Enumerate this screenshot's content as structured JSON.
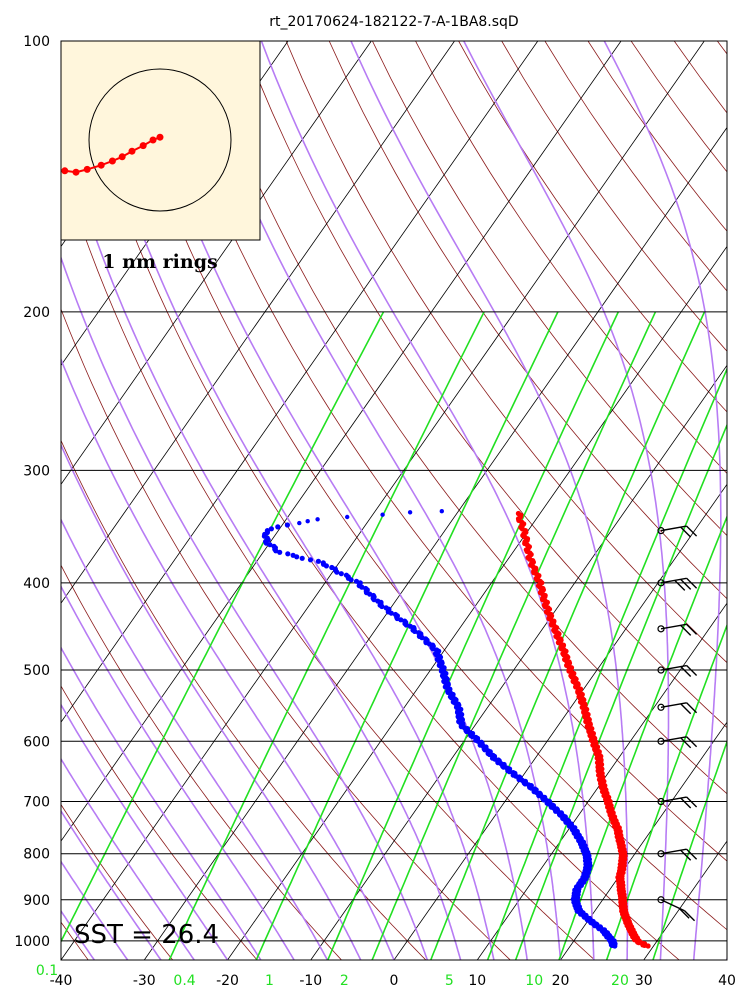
{
  "chart_data": {
    "type": "skew-t",
    "title": "rt_20170624-182122-7-A-1BA8.sqD",
    "pressure_ticks": [
      100,
      200,
      300,
      400,
      500,
      600,
      700,
      800,
      900,
      1000
    ],
    "pressure_range": [
      1050,
      100
    ],
    "temperature_ticks": [
      -40,
      -30,
      -20,
      -10,
      0,
      10,
      20,
      30,
      40
    ],
    "mixing_ratio_ticks": [
      {
        "value": "0.1",
        "p": 1050,
        "t": -40
      },
      {
        "value": "0.4",
        "p": 1050,
        "t": -26.6
      },
      {
        "value": "1",
        "p": 1050,
        "t": -16.4
      },
      {
        "value": "2",
        "p": 1050,
        "t": -7.4
      },
      {
        "value": "5",
        "p": 1050,
        "t": 5.2
      },
      {
        "value": "10",
        "p": 1050,
        "t": 15.4
      },
      {
        "value": "20",
        "p": 1050,
        "t": 25.7
      }
    ],
    "temperature_profile": [
      [
        1013,
        29.2
      ],
      [
        1000,
        27.6
      ],
      [
        975,
        26.1
      ],
      [
        950,
        24.7
      ],
      [
        925,
        23.4
      ],
      [
        900,
        22.4
      ],
      [
        875,
        21.3
      ],
      [
        850,
        20.2
      ],
      [
        825,
        19.5
      ],
      [
        800,
        18.6
      ],
      [
        775,
        17.2
      ],
      [
        750,
        15.8
      ],
      [
        725,
        14.0
      ],
      [
        700,
        12.4
      ],
      [
        675,
        10.6
      ],
      [
        650,
        9.0
      ],
      [
        625,
        7.6
      ],
      [
        600,
        5.6
      ],
      [
        575,
        3.6
      ],
      [
        550,
        1.6
      ],
      [
        525,
        -0.6
      ],
      [
        500,
        -3.2
      ],
      [
        475,
        -5.7
      ],
      [
        450,
        -8.5
      ],
      [
        425,
        -11.4
      ],
      [
        400,
        -14.2
      ],
      [
        375,
        -17.5
      ],
      [
        350,
        -20.5
      ],
      [
        335,
        -22.6
      ]
    ],
    "dewpoint_profile": [
      [
        1013,
        25.2
      ],
      [
        1000,
        24.6
      ],
      [
        975,
        22.8
      ],
      [
        950,
        20.3
      ],
      [
        925,
        18.0
      ],
      [
        900,
        16.7
      ],
      [
        875,
        16.0
      ],
      [
        850,
        16.0
      ],
      [
        825,
        15.4
      ],
      [
        800,
        14.2
      ],
      [
        775,
        12.5
      ],
      [
        750,
        10.5
      ],
      [
        725,
        8.0
      ],
      [
        700,
        5.1
      ],
      [
        675,
        2.0
      ],
      [
        650,
        -1.6
      ],
      [
        625,
        -5.1
      ],
      [
        600,
        -8.2
      ],
      [
        575,
        -11.7
      ],
      [
        550,
        -13.5
      ],
      [
        525,
        -16.3
      ],
      [
        500,
        -18.5
      ],
      [
        475,
        -21.0
      ],
      [
        450,
        -25.5
      ],
      [
        425,
        -31.0
      ],
      [
        400,
        -36.0
      ],
      [
        380,
        -42.0
      ],
      [
        370,
        -48.0
      ],
      [
        360,
        -50.5
      ],
      [
        355,
        -51.0
      ],
      [
        350,
        -51.5
      ],
      [
        345,
        -49.5
      ],
      [
        340,
        -46.0
      ],
      [
        338,
        -43.0
      ],
      [
        336,
        -39.0
      ],
      [
        334,
        -35.5
      ],
      [
        333,
        -32.0
      ]
    ],
    "wind_barb_levels": [
      350,
      400,
      450,
      500,
      550,
      600,
      700,
      800,
      900
    ],
    "inset": {
      "label": "1 nm rings",
      "track": [
        [
          -0.68,
          0.22
        ],
        [
          -0.6,
          0.23
        ],
        [
          -0.52,
          0.21
        ],
        [
          -0.42,
          0.18
        ],
        [
          -0.34,
          0.15
        ],
        [
          -0.27,
          0.12
        ],
        [
          -0.2,
          0.08
        ],
        [
          -0.12,
          0.04
        ],
        [
          -0.05,
          0.0
        ],
        [
          0.0,
          -0.02
        ]
      ]
    },
    "annotation": "SST = 26.4"
  },
  "colors": {
    "temperature": "#ff0000",
    "dewpoint": "#0000ff",
    "isotherm": "#000000",
    "dry_adiabat": "#8b1a1a",
    "moist_adiabat": "#b77cf4",
    "mixing_ratio": "#22e022",
    "inset_bg": "#fff6dc"
  }
}
